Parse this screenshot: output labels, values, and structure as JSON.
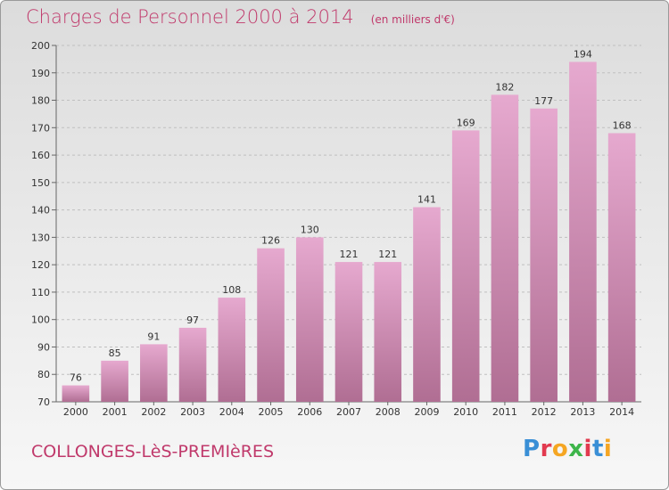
{
  "header": {
    "title": "Charges de Personnel 2000 à 2014",
    "unit": "(en milliers d'€)"
  },
  "footer": {
    "location": "COLLONGES-LèS-PREMIèRES",
    "brand": "Proxiti",
    "brand_colors": [
      "#3a8fd6",
      "#e23a4f",
      "#f5a623",
      "#3db54a",
      "#e23a4f",
      "#3a8fd6",
      "#f5a623"
    ]
  },
  "colors": {
    "accent": "#c0396b",
    "bar_top": "#e6a9cf",
    "bar_bottom": "#b06e93",
    "grid": "#bfbfbf"
  },
  "chart_data": {
    "type": "bar",
    "title": "Charges de Personnel 2000 à 2014",
    "subtitle": "(en milliers d'€)",
    "xlabel": "",
    "ylabel": "",
    "categories": [
      "2000",
      "2001",
      "2002",
      "2003",
      "2004",
      "2005",
      "2006",
      "2007",
      "2008",
      "2009",
      "2010",
      "2011",
      "2012",
      "2013",
      "2014"
    ],
    "values": [
      76,
      85,
      91,
      97,
      108,
      126,
      130,
      121,
      121,
      141,
      169,
      182,
      177,
      194,
      168
    ],
    "ylim": [
      70,
      200
    ],
    "yticks": [
      70,
      80,
      90,
      100,
      110,
      120,
      130,
      140,
      150,
      160,
      170,
      180,
      190,
      200
    ],
    "grid": true,
    "legend": "none"
  }
}
